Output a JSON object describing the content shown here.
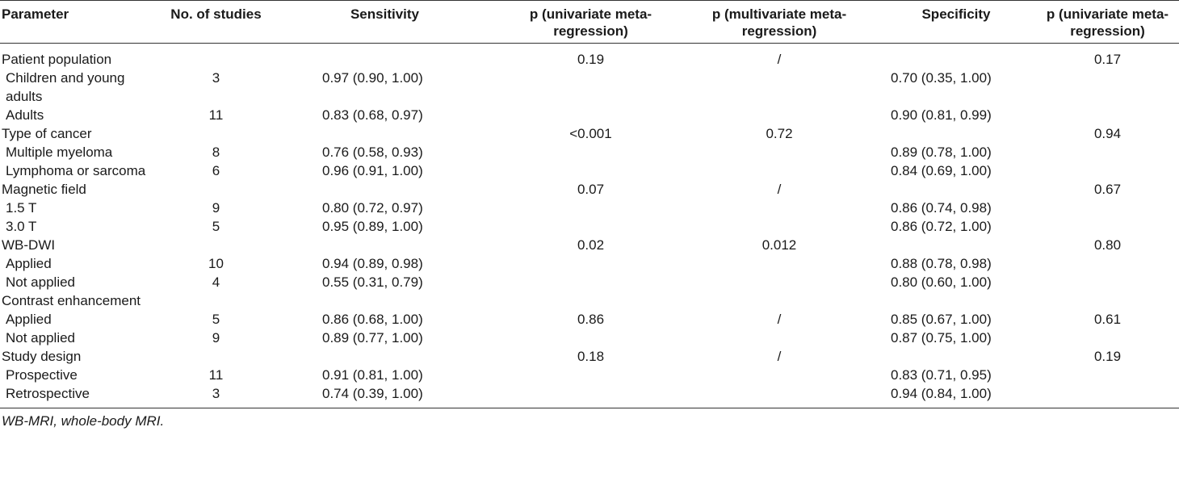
{
  "table": {
    "headers": [
      "Parameter",
      "No. of studies",
      "Sensitivity",
      "p (univariate meta-regression)",
      "p (multivariate meta-regression)",
      "Specificity",
      "p (univariate meta-regression)"
    ],
    "rows": [
      {
        "param": "Patient population",
        "sub": false,
        "n": "",
        "sens": "",
        "p_uni": "0.19",
        "p_multi": "/",
        "spec": "",
        "p_uni2": "0.17"
      },
      {
        "param": "Children and young adults",
        "sub": true,
        "n": "3",
        "sens": "0.97 (0.90, 1.00)",
        "p_uni": "",
        "p_multi": "",
        "spec": "0.70 (0.35, 1.00)",
        "p_uni2": ""
      },
      {
        "param": "Adults",
        "sub": true,
        "n": "11",
        "sens": "0.83 (0.68, 0.97)",
        "p_uni": "",
        "p_multi": "",
        "spec": "0.90 (0.81, 0.99)",
        "p_uni2": ""
      },
      {
        "param": "Type of cancer",
        "sub": false,
        "n": "",
        "sens": "",
        "p_uni": "<0.001",
        "p_multi": "0.72",
        "spec": "",
        "p_uni2": "0.94"
      },
      {
        "param": "Multiple myeloma",
        "sub": true,
        "n": "8",
        "sens": "0.76 (0.58, 0.93)",
        "p_uni": "",
        "p_multi": "",
        "spec": "0.89 (0.78, 1.00)",
        "p_uni2": ""
      },
      {
        "param": "Lymphoma or sarcoma",
        "sub": true,
        "n": "6",
        "sens": "0.96 (0.91, 1.00)",
        "p_uni": "",
        "p_multi": "",
        "spec": "0.84 (0.69, 1.00)",
        "p_uni2": ""
      },
      {
        "param": "Magnetic field",
        "sub": false,
        "n": "",
        "sens": "",
        "p_uni": "0.07",
        "p_multi": "/",
        "spec": "",
        "p_uni2": "0.67"
      },
      {
        "param": "1.5 T",
        "sub": true,
        "n": "9",
        "sens": "0.80 (0.72, 0.97)",
        "p_uni": "",
        "p_multi": "",
        "spec": "0.86 (0.74, 0.98)",
        "p_uni2": ""
      },
      {
        "param": "3.0 T",
        "sub": true,
        "n": "5",
        "sens": "0.95 (0.89, 1.00)",
        "p_uni": "",
        "p_multi": "",
        "spec": "0.86 (0.72, 1.00)",
        "p_uni2": ""
      },
      {
        "param": "WB-DWI",
        "sub": false,
        "n": "",
        "sens": "",
        "p_uni": "0.02",
        "p_multi": "0.012",
        "spec": "",
        "p_uni2": "0.80"
      },
      {
        "param": "Applied",
        "sub": true,
        "n": "10",
        "sens": "0.94 (0.89, 0.98)",
        "p_uni": "",
        "p_multi": "",
        "spec": "0.88 (0.78, 0.98)",
        "p_uni2": ""
      },
      {
        "param": "Not applied",
        "sub": true,
        "n": "4",
        "sens": "0.55 (0.31, 0.79)",
        "p_uni": "",
        "p_multi": "",
        "spec": "0.80 (0.60, 1.00)",
        "p_uni2": ""
      },
      {
        "param": "Contrast enhancement",
        "sub": false,
        "n": "",
        "sens": "",
        "p_uni": "",
        "p_multi": "",
        "spec": "",
        "p_uni2": ""
      },
      {
        "param": "Applied",
        "sub": true,
        "n": "5",
        "sens": "0.86 (0.68, 1.00)",
        "p_uni": "0.86",
        "p_multi": "/",
        "spec": "0.85 (0.67, 1.00)",
        "p_uni2": "0.61"
      },
      {
        "param": "Not applied",
        "sub": true,
        "n": "9",
        "sens": "0.89 (0.77, 1.00)",
        "p_uni": "",
        "p_multi": "",
        "spec": "0.87 (0.75, 1.00)",
        "p_uni2": ""
      },
      {
        "param": "Study design",
        "sub": false,
        "n": "",
        "sens": "",
        "p_uni": "0.18",
        "p_multi": "/",
        "spec": "",
        "p_uni2": "0.19"
      },
      {
        "param": "Prospective",
        "sub": true,
        "n": "11",
        "sens": "0.91 (0.81, 1.00)",
        "p_uni": "",
        "p_multi": "",
        "spec": "0.83 (0.71, 0.95)",
        "p_uni2": ""
      },
      {
        "param": "Retrospective",
        "sub": true,
        "n": "3",
        "sens": "0.74 (0.39, 1.00)",
        "p_uni": "",
        "p_multi": "",
        "spec": "0.94 (0.84, 1.00)",
        "p_uni2": ""
      }
    ]
  },
  "footnote": "WB-MRI, whole-body MRI."
}
